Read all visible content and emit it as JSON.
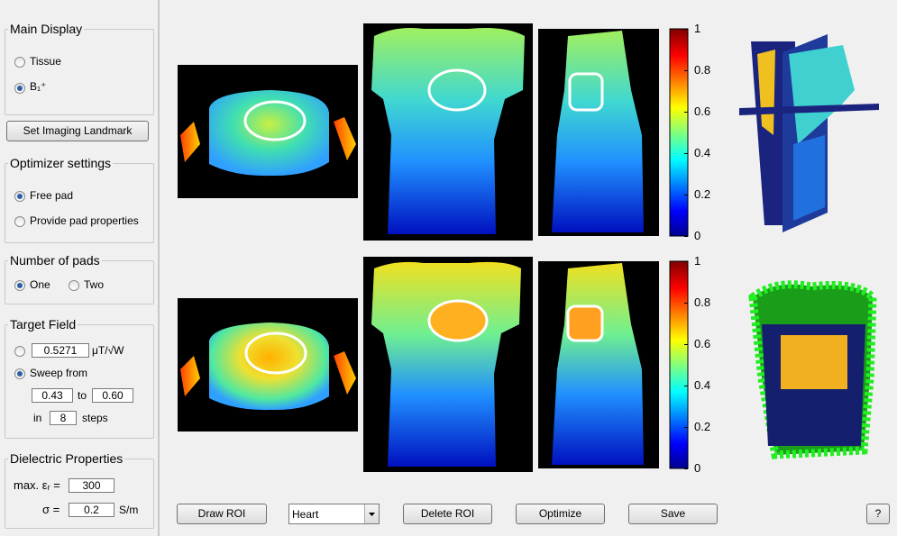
{
  "main_display": {
    "title": "Main Display",
    "options": [
      "Tissue",
      "B₁⁺"
    ]
  },
  "landmark_button": "Set Imaging Landmark",
  "optimizer_settings": {
    "title": "Optimizer settings",
    "options": [
      "Free pad",
      "Provide pad properties"
    ]
  },
  "number_of_pads": {
    "title": "Number of pads",
    "options": [
      "One",
      "Two"
    ]
  },
  "target_field": {
    "title": "Target Field",
    "field_value": "0.5271",
    "field_unit": "μT/√W",
    "sweep_label": "Sweep from",
    "sweep_start": "0.43",
    "sweep_to": "to",
    "sweep_end": "0.60",
    "steps_prefix": "in",
    "steps": "8",
    "steps_suffix": "steps"
  },
  "dielectric": {
    "title": "Dielectric Properties",
    "eps_label": "max. εᵣ =",
    "eps_value": "300",
    "sigma_label": "σ =",
    "sigma_value": "0.2",
    "sigma_unit": "S/m"
  },
  "colorbars": [
    {
      "ticks": [
        1,
        0.8,
        0.6,
        0.4,
        0.2,
        0
      ]
    },
    {
      "ticks": [
        1,
        0.8,
        0.6,
        0.4,
        0.2,
        0
      ]
    }
  ],
  "toolbar": {
    "draw_roi": "Draw ROI",
    "roi_select": "Heart",
    "delete_roi": "Delete ROI",
    "optimize": "Optimize",
    "save": "Save",
    "help": "?"
  }
}
